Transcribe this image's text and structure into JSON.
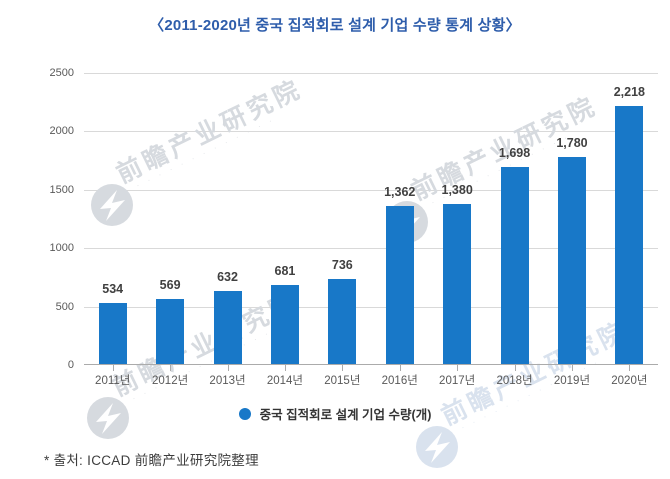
{
  "title": "〈2011-2020년 중국 집적회로 설계 기업 수량 통계 상황〉",
  "legend": {
    "label": "중국 집적회로 설계 기업 수량(개)"
  },
  "source_note": "* 출처: ICCAD 前瞻产业研究院整理",
  "watermark": {
    "text": "前瞻产业研究院",
    "tagline": "· · · · · · · · · · · · · ·"
  },
  "colors": {
    "bar": "#1878C8",
    "title_text": "#2E5DAB",
    "grid": "#D9D9D9",
    "axis": "#ABABAB",
    "tick_text": "#595959",
    "value_text": "#404040",
    "watermark": "#D6DADF",
    "source_text": "#3D3D3D"
  },
  "chart_data": {
    "type": "bar",
    "title": "〈2011-2020년 중국 집적회로 설계 기업 수량 통계 상황〉",
    "categories": [
      "2011년",
      "2012년",
      "2013년",
      "2014년",
      "2015년",
      "2016년",
      "2017년",
      "2018년",
      "2019년",
      "2020년"
    ],
    "values": [
      534,
      569,
      632,
      681,
      736,
      1362,
      1380,
      1698,
      1780,
      2218
    ],
    "value_labels": [
      "534",
      "569",
      "632",
      "681",
      "736",
      "1,362",
      "1,380",
      "1,698",
      "1,780",
      "2,218"
    ],
    "series_name": "중국 집적회로 설계 기업 수량(개)",
    "xlabel": "",
    "ylabel": "",
    "ylim": [
      0,
      2500
    ],
    "yticks": [
      0,
      500,
      1000,
      1500,
      2000,
      2500
    ],
    "grid": true,
    "legend_position": "bottom"
  }
}
